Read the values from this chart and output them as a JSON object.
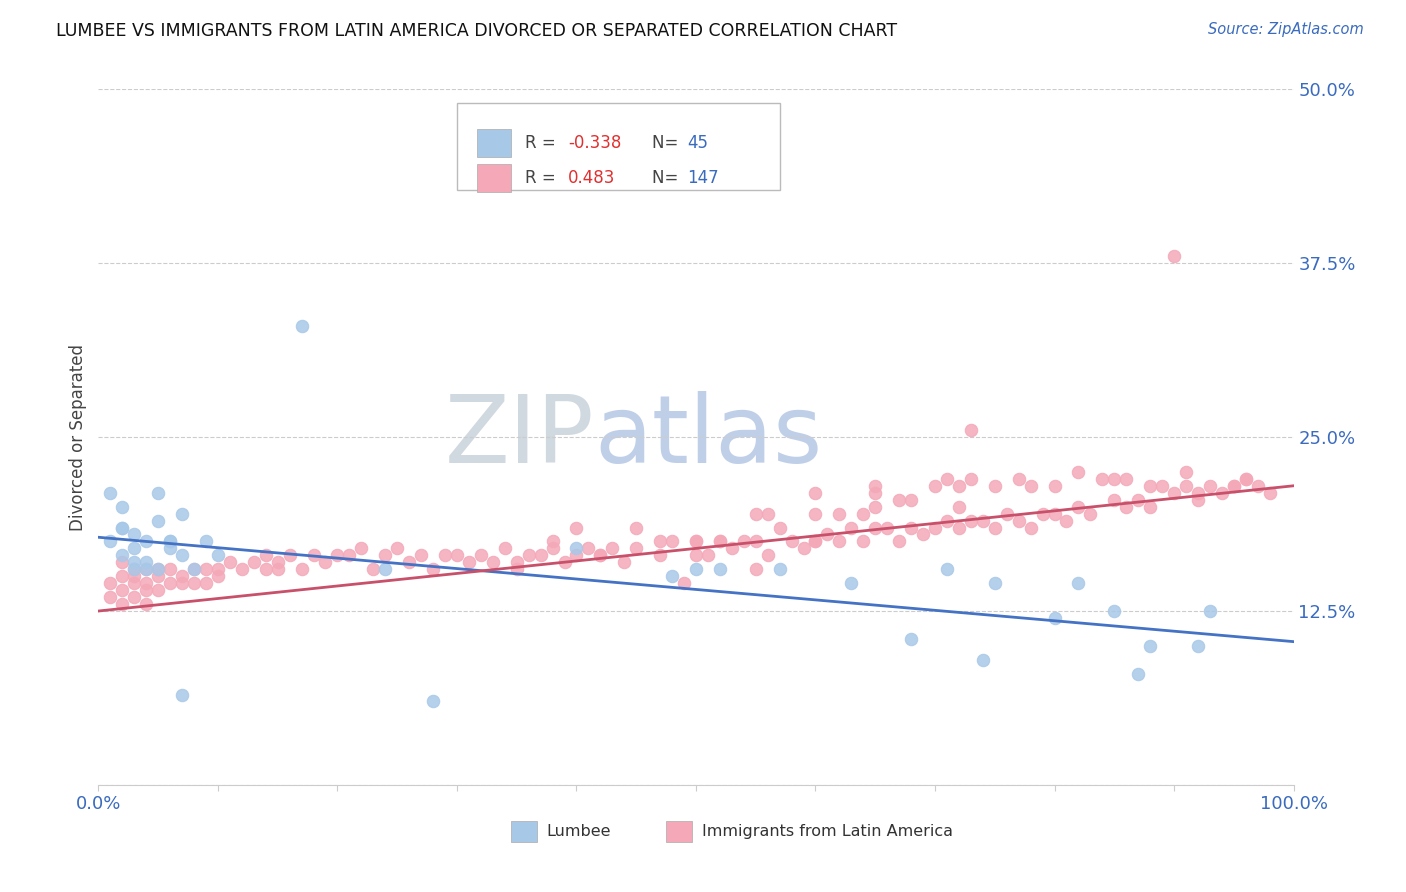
{
  "title": "LUMBEE VS IMMIGRANTS FROM LATIN AMERICA DIVORCED OR SEPARATED CORRELATION CHART",
  "source_text": "Source: ZipAtlas.com",
  "ylabel": "Divorced or Separated",
  "xlim": [
    0.0,
    1.0
  ],
  "ylim": [
    0.0,
    0.5
  ],
  "yticks": [
    0.0,
    0.125,
    0.25,
    0.375,
    0.5
  ],
  "ytick_labels": [
    "",
    "12.5%",
    "25.0%",
    "37.5%",
    "50.0%"
  ],
  "color_lumbee": "#a8c8e8",
  "color_latin": "#f4a8b8",
  "color_line_lumbee": "#4472c4",
  "color_line_latin": "#c8506a",
  "lumbee_line_start_y": 0.178,
  "lumbee_line_end_y": 0.103,
  "latin_line_start_y": 0.125,
  "latin_line_end_y": 0.215,
  "lumbee_x": [
    0.01,
    0.02,
    0.02,
    0.03,
    0.03,
    0.03,
    0.04,
    0.04,
    0.05,
    0.05,
    0.06,
    0.06,
    0.07,
    0.07,
    0.01,
    0.02,
    0.02,
    0.03,
    0.04,
    0.05,
    0.06,
    0.07,
    0.08,
    0.09,
    0.1,
    0.17,
    0.24,
    0.28,
    0.4,
    0.5,
    0.52,
    0.63,
    0.71,
    0.74,
    0.75,
    0.8,
    0.85,
    0.87,
    0.88,
    0.92,
    0.93,
    0.82,
    0.68,
    0.57,
    0.48
  ],
  "lumbee_y": [
    0.175,
    0.165,
    0.185,
    0.16,
    0.17,
    0.155,
    0.175,
    0.16,
    0.19,
    0.155,
    0.175,
    0.17,
    0.165,
    0.195,
    0.21,
    0.2,
    0.185,
    0.18,
    0.155,
    0.21,
    0.175,
    0.065,
    0.155,
    0.175,
    0.165,
    0.33,
    0.155,
    0.06,
    0.17,
    0.155,
    0.155,
    0.145,
    0.155,
    0.09,
    0.145,
    0.12,
    0.125,
    0.08,
    0.1,
    0.1,
    0.125,
    0.145,
    0.105,
    0.155,
    0.15
  ],
  "latin_x": [
    0.01,
    0.01,
    0.02,
    0.02,
    0.02,
    0.02,
    0.03,
    0.03,
    0.03,
    0.03,
    0.04,
    0.04,
    0.04,
    0.04,
    0.05,
    0.05,
    0.05,
    0.06,
    0.06,
    0.07,
    0.07,
    0.08,
    0.08,
    0.09,
    0.09,
    0.1,
    0.1,
    0.11,
    0.12,
    0.13,
    0.14,
    0.14,
    0.15,
    0.15,
    0.16,
    0.17,
    0.18,
    0.19,
    0.2,
    0.21,
    0.22,
    0.23,
    0.24,
    0.25,
    0.26,
    0.27,
    0.28,
    0.29,
    0.3,
    0.31,
    0.32,
    0.33,
    0.34,
    0.35,
    0.36,
    0.37,
    0.38,
    0.39,
    0.4,
    0.41,
    0.42,
    0.43,
    0.44,
    0.45,
    0.47,
    0.48,
    0.5,
    0.51,
    0.52,
    0.53,
    0.54,
    0.55,
    0.56,
    0.58,
    0.59,
    0.6,
    0.61,
    0.62,
    0.63,
    0.64,
    0.65,
    0.66,
    0.67,
    0.68,
    0.69,
    0.7,
    0.71,
    0.72,
    0.73,
    0.74,
    0.75,
    0.76,
    0.77,
    0.78,
    0.79,
    0.8,
    0.81,
    0.82,
    0.83,
    0.85,
    0.86,
    0.87,
    0.88,
    0.89,
    0.9,
    0.91,
    0.92,
    0.93,
    0.94,
    0.95,
    0.96,
    0.97,
    0.98,
    0.6,
    0.65,
    0.7,
    0.75,
    0.8,
    0.85,
    0.9,
    0.4,
    0.45,
    0.5,
    0.55,
    0.6,
    0.65,
    0.68,
    0.71,
    0.73,
    0.95,
    0.35,
    0.38,
    0.42,
    0.47,
    0.52,
    0.57,
    0.62,
    0.67,
    0.72,
    0.77,
    0.82,
    0.86,
    0.91,
    0.5,
    0.55,
    0.6,
    0.65,
    0.72,
    0.78,
    0.84,
    0.88,
    0.92,
    0.96,
    0.73,
    0.64,
    0.56,
    0.49
  ],
  "latin_y": [
    0.145,
    0.135,
    0.16,
    0.14,
    0.15,
    0.13,
    0.155,
    0.145,
    0.135,
    0.15,
    0.14,
    0.155,
    0.13,
    0.145,
    0.15,
    0.14,
    0.155,
    0.145,
    0.155,
    0.15,
    0.145,
    0.155,
    0.145,
    0.155,
    0.145,
    0.155,
    0.15,
    0.16,
    0.155,
    0.16,
    0.155,
    0.165,
    0.155,
    0.16,
    0.165,
    0.155,
    0.165,
    0.16,
    0.165,
    0.165,
    0.17,
    0.155,
    0.165,
    0.17,
    0.16,
    0.165,
    0.155,
    0.165,
    0.165,
    0.16,
    0.165,
    0.16,
    0.17,
    0.16,
    0.165,
    0.165,
    0.175,
    0.16,
    0.165,
    0.17,
    0.165,
    0.17,
    0.16,
    0.17,
    0.165,
    0.175,
    0.175,
    0.165,
    0.175,
    0.17,
    0.175,
    0.175,
    0.165,
    0.175,
    0.17,
    0.175,
    0.18,
    0.175,
    0.185,
    0.175,
    0.185,
    0.185,
    0.175,
    0.185,
    0.18,
    0.185,
    0.19,
    0.185,
    0.19,
    0.19,
    0.185,
    0.195,
    0.19,
    0.185,
    0.195,
    0.195,
    0.19,
    0.2,
    0.195,
    0.205,
    0.2,
    0.205,
    0.2,
    0.215,
    0.21,
    0.215,
    0.205,
    0.215,
    0.21,
    0.215,
    0.22,
    0.215,
    0.21,
    0.21,
    0.215,
    0.215,
    0.215,
    0.215,
    0.22,
    0.38,
    0.185,
    0.185,
    0.175,
    0.195,
    0.195,
    0.2,
    0.205,
    0.22,
    0.22,
    0.215,
    0.155,
    0.17,
    0.165,
    0.175,
    0.175,
    0.185,
    0.195,
    0.205,
    0.215,
    0.22,
    0.225,
    0.22,
    0.225,
    0.165,
    0.155,
    0.175,
    0.21,
    0.2,
    0.215,
    0.22,
    0.215,
    0.21,
    0.22,
    0.255,
    0.195,
    0.195,
    0.145
  ]
}
